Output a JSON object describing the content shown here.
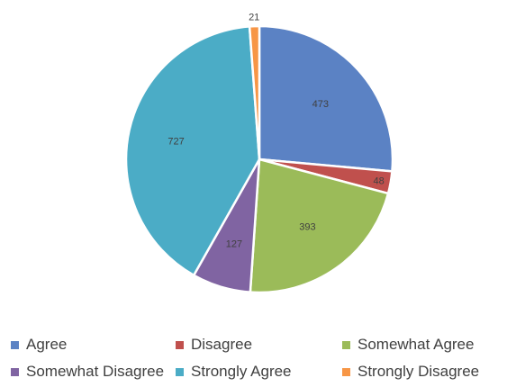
{
  "chart_data": {
    "type": "pie",
    "slices": [
      {
        "label": "Agree",
        "value": 473,
        "color": "#5B82C4"
      },
      {
        "label": "Disagree",
        "value": 48,
        "color": "#C0504D"
      },
      {
        "label": "Somewhat Agree",
        "value": 393,
        "color": "#9BBB59"
      },
      {
        "label": "Somewhat Disagree",
        "value": 127,
        "color": "#8064A2"
      },
      {
        "label": "Strongly Agree",
        "value": 727,
        "color": "#4BACC6"
      },
      {
        "label": "Strongly Disagree",
        "value": 21,
        "color": "#F79646"
      }
    ],
    "start_angle": "12 o'clock",
    "direction": "clockwise",
    "legend_position": "bottom"
  },
  "legend": {
    "items": [
      {
        "label": "Agree",
        "color": "#5B82C4"
      },
      {
        "label": "Disagree",
        "color": "#C0504D"
      },
      {
        "label": "Somewhat Agree",
        "color": "#9BBB59"
      },
      {
        "label": "Somewhat Disagree",
        "color": "#8064A2"
      },
      {
        "label": "Strongly Agree",
        "color": "#4BACC6"
      },
      {
        "label": "Strongly Disagree",
        "color": "#F79646"
      }
    ]
  }
}
